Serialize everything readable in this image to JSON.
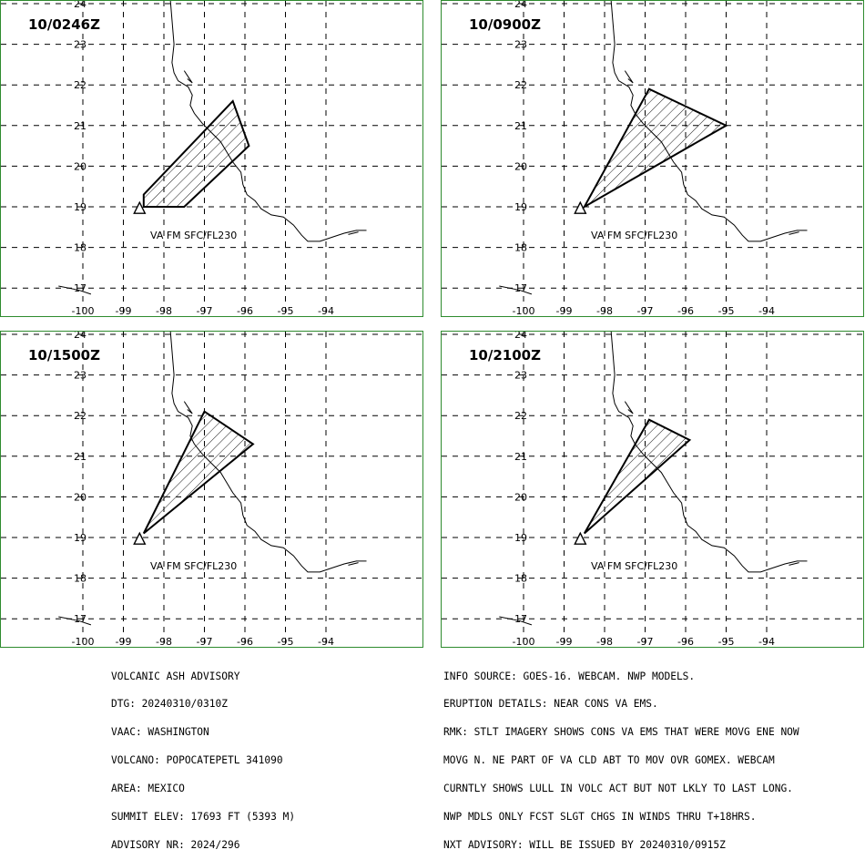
{
  "panels": [
    {
      "time": "10/0246Z",
      "label": "VA FM SFC/FL230",
      "polygon": [
        [
          -98.5,
          19.3
        ],
        [
          -96.3,
          21.6
        ],
        [
          -95.9,
          20.5
        ],
        [
          -97.5,
          19.0
        ],
        [
          -98.5,
          19.0
        ]
      ]
    },
    {
      "time": "10/0900Z",
      "label": "VA FM SFC/FL230",
      "polygon": [
        [
          -98.5,
          19.0
        ],
        [
          -96.9,
          21.9
        ],
        [
          -95.0,
          21.0
        ]
      ]
    },
    {
      "time": "10/1500Z",
      "label": "VA FM SFC/FL230",
      "polygon": [
        [
          -98.5,
          19.1
        ],
        [
          -97.0,
          22.1
        ],
        [
          -95.8,
          21.3
        ]
      ]
    },
    {
      "time": "10/2100Z",
      "label": "VA FM SFC/FL230",
      "polygon": [
        [
          -98.5,
          19.1
        ],
        [
          -96.9,
          21.9
        ],
        [
          -95.9,
          21.4
        ]
      ]
    }
  ],
  "axes": {
    "lon_ticks": [
      "-100",
      "-99",
      "-98",
      "-97",
      "-96",
      "-95",
      "-94"
    ],
    "lat_ticks": [
      "24",
      "23",
      "22",
      "21",
      "20",
      "19",
      "18",
      "17"
    ]
  },
  "volcano": {
    "lon": -98.6,
    "lat": 18.95
  },
  "advisory_left": [
    "VOLCANIC ASH ADVISORY",
    "DTG: 20240310/0310Z",
    "VAAC: WASHINGTON",
    "VOLCANO: POPOCATEPETL 341090",
    "AREA: MEXICO",
    "SUMMIT ELEV: 17693 FT (5393 M)",
    "ADVISORY NR: 2024/296"
  ],
  "advisory_right": [
    "INFO SOURCE: GOES-16. WEBCAM. NWP MODELS.",
    "ERUPTION DETAILS: NEAR CONS VA EMS.",
    "RMK: STLT IMAGERY SHOWS CONS VA EMS THAT WERE MOVG ENE NOW",
    "MOVG N. NE PART OF VA CLD ABT TO MOV OVR GOMEX. WEBCAM",
    "CURNTLY SHOWS LULL IN VOLC ACT BUT NOT LKLY TO LAST LONG.",
    "NWP MDLS ONLY FCST SLGT CHGS IN WINDS THRU T+18HRS.",
    "NXT ADVISORY: WILL BE ISSUED BY 20240310/0915Z"
  ],
  "colors": {
    "frame": "#2e8b2e",
    "lines": "#000000"
  }
}
